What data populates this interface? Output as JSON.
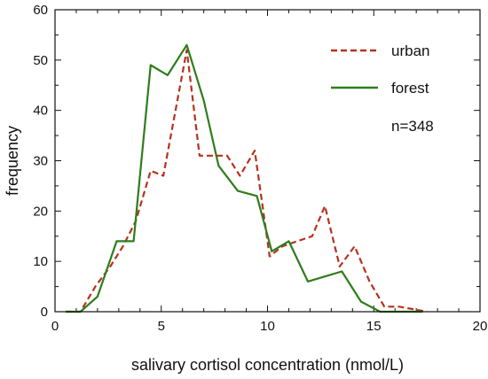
{
  "chart_data": {
    "type": "line",
    "xlabel": "salivary cortisol concentration (nmol/L)",
    "ylabel": "frequency",
    "xlim": [
      0,
      20
    ],
    "ylim": [
      0,
      60
    ],
    "xticks": [
      0,
      5,
      10,
      15,
      20
    ],
    "yticks": [
      0,
      10,
      20,
      30,
      40,
      50,
      60
    ],
    "annotation": "n=348",
    "legend_position": "top-right",
    "series": [
      {
        "name": "urban",
        "color": "#b5321f",
        "style": "dashed",
        "x": [
          0.5,
          1.2,
          1.9,
          2.6,
          3.2,
          3.8,
          4.5,
          5.1,
          6.2,
          6.8,
          7.5,
          8.1,
          8.7,
          9.4,
          10.1,
          10.7,
          11.4,
          12.1,
          12.7,
          13.4,
          14.1,
          14.8,
          15.5,
          16.2,
          17.5
        ],
        "y": [
          0,
          0,
          5,
          9,
          13,
          18,
          28,
          27,
          52,
          31,
          31,
          31,
          27,
          32,
          11,
          13,
          14,
          15,
          21,
          9,
          13,
          6,
          1,
          1,
          0
        ]
      },
      {
        "name": "forest",
        "color": "#2e7d1c",
        "style": "solid",
        "x": [
          0.5,
          1.2,
          2.0,
          2.9,
          3.7,
          4.5,
          5.3,
          6.2,
          7.0,
          7.7,
          8.6,
          9.5,
          10.2,
          11.0,
          11.9,
          12.7,
          13.5,
          14.4,
          15.3,
          16.2,
          17.3
        ],
        "y": [
          0,
          0,
          3,
          14,
          14,
          49,
          47,
          53,
          42,
          29,
          24,
          23,
          12,
          14,
          6,
          7,
          8,
          2,
          0,
          0,
          0
        ]
      }
    ]
  }
}
